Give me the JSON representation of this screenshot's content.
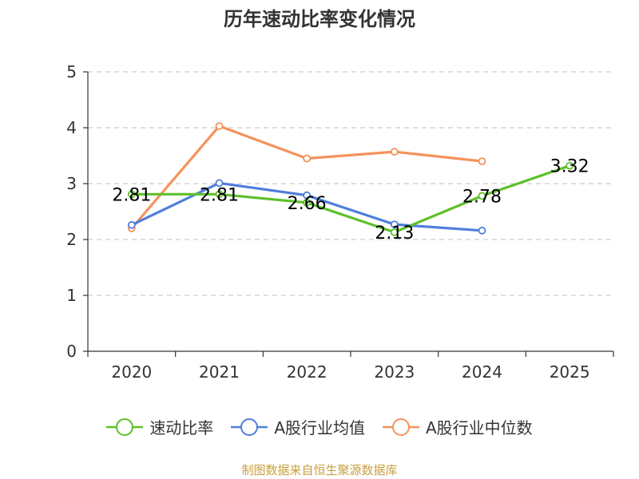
{
  "chart_data": {
    "type": "line",
    "title": "历年速动比率变化情况",
    "categories": [
      "2020",
      "2021",
      "2022",
      "2023",
      "2024",
      "2025"
    ],
    "ylim": [
      0,
      5
    ],
    "yticks": [
      0,
      1,
      2,
      3,
      4,
      5
    ],
    "grid": "horizontal-dashed",
    "legend_position": "bottom",
    "series": [
      {
        "name": "速动比率",
        "color": "#5ec02a",
        "values": [
          2.81,
          2.81,
          2.66,
          2.13,
          2.78,
          3.32
        ],
        "labels": [
          "2.81",
          "2.81",
          "2.66",
          "2.13",
          "2.78",
          "3.32"
        ]
      },
      {
        "name": "A股行业均值",
        "color": "#4f7fdc",
        "values": [
          2.26,
          3.01,
          2.79,
          2.27,
          2.16,
          null
        ]
      },
      {
        "name": "A股行业中位数",
        "color": "#f4925c",
        "values": [
          2.2,
          4.03,
          3.45,
          3.57,
          3.4,
          null
        ]
      }
    ]
  },
  "source_note": "制图数据来自恒生聚源数据库"
}
